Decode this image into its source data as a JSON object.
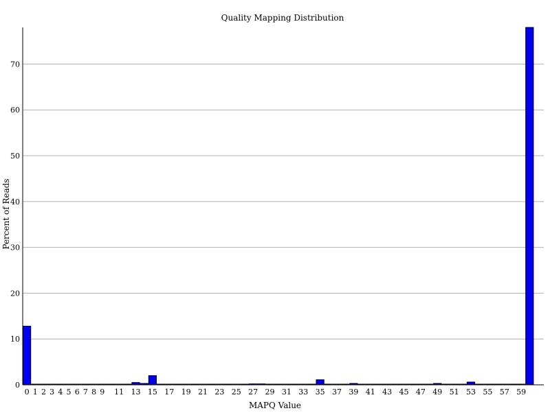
{
  "chart_data": {
    "type": "bar",
    "title": "Quality Mapping Distribution",
    "xlabel": "MAPQ Value",
    "ylabel": "Percent of Reads",
    "ylim": [
      0,
      78
    ],
    "yticks": [
      0,
      10,
      20,
      30,
      40,
      50,
      60,
      70
    ],
    "grid": true,
    "legend": "none",
    "bar_color": "#0000ee",
    "categories": [
      0,
      1,
      2,
      3,
      4,
      5,
      6,
      7,
      8,
      9,
      10,
      11,
      12,
      13,
      14,
      15,
      16,
      17,
      18,
      19,
      20,
      21,
      22,
      23,
      24,
      25,
      26,
      27,
      28,
      29,
      30,
      31,
      32,
      33,
      34,
      35,
      36,
      37,
      38,
      39,
      40,
      41,
      42,
      43,
      44,
      45,
      46,
      47,
      48,
      49,
      50,
      51,
      52,
      53,
      54,
      55,
      56,
      57,
      58,
      59,
      60
    ],
    "tick_labels": [
      "0",
      "1",
      "2",
      "3",
      "4",
      "5",
      "6",
      "7",
      "8",
      "9",
      "11",
      "13",
      "15",
      "17",
      "19",
      "21",
      "23",
      "25",
      "27",
      "29",
      "31",
      "33",
      "35",
      "37",
      "39",
      "41",
      "43",
      "45",
      "47",
      "49",
      "51",
      "53",
      "55",
      "57",
      "59"
    ],
    "values": [
      12.8,
      0.05,
      0.05,
      0.05,
      0.05,
      0.05,
      0.05,
      0.05,
      0.05,
      0.05,
      0.05,
      0.15,
      0.05,
      0.5,
      0.3,
      2.0,
      0.05,
      0.05,
      0.15,
      0.05,
      0.05,
      0.05,
      0.15,
      0.05,
      0.05,
      0.05,
      0.05,
      0.2,
      0.2,
      0.05,
      0.05,
      0.05,
      0.15,
      0.15,
      0.05,
      1.1,
      0.05,
      0.05,
      0.05,
      0.3,
      0.05,
      0.05,
      0.15,
      0.05,
      0.05,
      0.05,
      0.05,
      0.15,
      0.05,
      0.3,
      0.05,
      0.05,
      0.05,
      0.6,
      0.05,
      0.05,
      0.15,
      0.05,
      0.05,
      0.05,
      78.0
    ]
  }
}
